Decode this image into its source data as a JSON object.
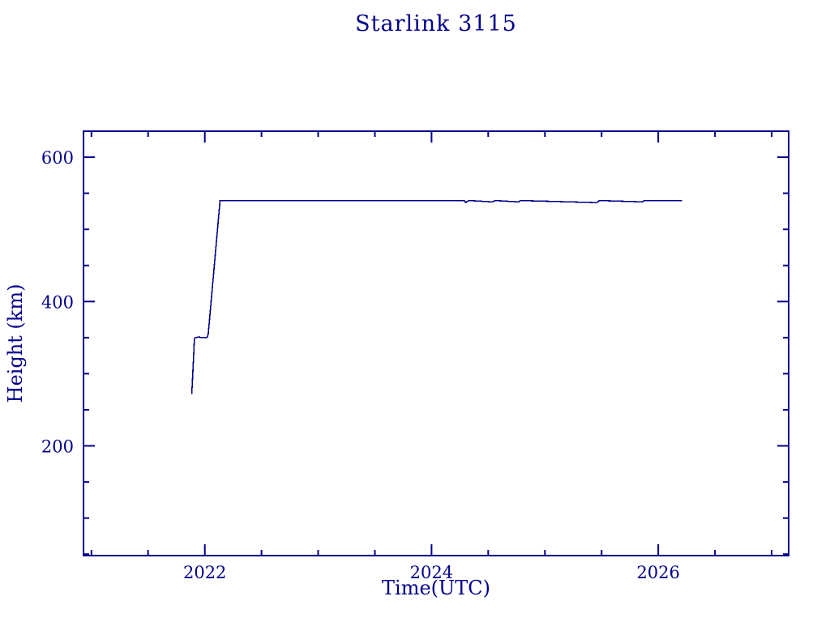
{
  "title": "Starlink 3115",
  "chart_data": {
    "type": "line",
    "title": "Starlink 3115",
    "xlabel": "Time(UTC)",
    "ylabel": "Height (km)",
    "xlim": [
      2020.93,
      2027.15
    ],
    "ylim": [
      48,
      636
    ],
    "grid": false,
    "legend": null,
    "background": "#ffffff",
    "ink_color": "#00008B",
    "line_color": "#00008B",
    "x_major_ticks": [
      {
        "value": 2022,
        "label": "2022"
      },
      {
        "value": 2024,
        "label": "2024"
      },
      {
        "value": 2026,
        "label": "2026"
      }
    ],
    "x_minor_ticks": [
      2021,
      2021.5,
      2022.5,
      2023,
      2023.5,
      2024.5,
      2025,
      2025.5,
      2026.5,
      2027
    ],
    "y_major_ticks": [
      {
        "value": 200,
        "label": "200"
      },
      {
        "value": 400,
        "label": "400"
      },
      {
        "value": 600,
        "label": "600"
      }
    ],
    "y_minor_ticks": [
      50,
      100,
      150,
      250,
      300,
      350,
      450,
      500,
      550
    ],
    "series": [
      {
        "name": "orbital-height",
        "points": [
          [
            2021.885,
            272
          ],
          [
            2021.9,
            320
          ],
          [
            2021.908,
            348
          ],
          [
            2021.915,
            350
          ],
          [
            2021.955,
            351
          ],
          [
            2021.96,
            350
          ],
          [
            2022.02,
            350
          ],
          [
            2022.03,
            355
          ],
          [
            2022.135,
            540
          ],
          [
            2024.29,
            540
          ],
          [
            2024.3,
            537
          ],
          [
            2024.33,
            540
          ],
          [
            2024.54,
            538
          ],
          [
            2024.56,
            540
          ],
          [
            2024.77,
            538
          ],
          [
            2024.785,
            540
          ],
          [
            2025.46,
            537
          ],
          [
            2025.48,
            540
          ],
          [
            2025.86,
            538
          ],
          [
            2025.875,
            540
          ],
          [
            2026.21,
            540
          ]
        ]
      }
    ]
  }
}
